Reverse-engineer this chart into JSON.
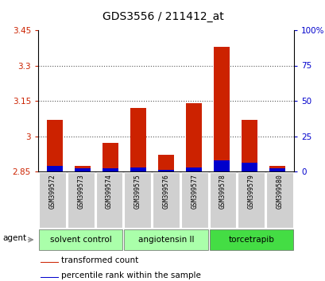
{
  "title": "GDS3556 / 211412_at",
  "samples": [
    "GSM399572",
    "GSM399573",
    "GSM399574",
    "GSM399575",
    "GSM399576",
    "GSM399577",
    "GSM399578",
    "GSM399579",
    "GSM399580"
  ],
  "groups": [
    {
      "label": "solvent control",
      "indices": [
        0,
        1,
        2
      ],
      "color": "#aaffaa"
    },
    {
      "label": "angiotensin II",
      "indices": [
        3,
        4,
        5
      ],
      "color": "#aaffaa"
    },
    {
      "label": "torcetrapib",
      "indices": [
        6,
        7,
        8
      ],
      "color": "#44ee44"
    }
  ],
  "red_values": [
    3.07,
    2.875,
    2.97,
    3.12,
    2.92,
    3.14,
    3.38,
    3.07,
    2.875
  ],
  "blue_values_pct": [
    4,
    2,
    2,
    3,
    1,
    3,
    8,
    6,
    2
  ],
  "ymin": 2.85,
  "ymax": 3.45,
  "yticks": [
    2.85,
    3.0,
    3.15,
    3.3,
    3.45
  ],
  "ytick_labels": [
    "2.85",
    "3",
    "3.15",
    "3.3",
    "3.45"
  ],
  "y2min": 0,
  "y2max": 100,
  "y2ticks": [
    0,
    25,
    50,
    75,
    100
  ],
  "y2tick_labels": [
    "0",
    "25",
    "50",
    "75",
    "100%"
  ],
  "bar_width": 0.55,
  "red_color": "#cc2200",
  "blue_color": "#0000cc",
  "grid_color": "#555555",
  "bg_sample_row": "#cccccc",
  "group_colors": [
    "#aaffaa",
    "#aaffaa",
    "#44dd44"
  ],
  "agent_label": "agent",
  "legend_red": "transformed count",
  "legend_blue": "percentile rank within the sample",
  "title_fontsize": 10,
  "tick_fontsize": 7.5,
  "sample_fontsize": 5.8,
  "group_fontsize": 7.5,
  "legend_fontsize": 7.5
}
